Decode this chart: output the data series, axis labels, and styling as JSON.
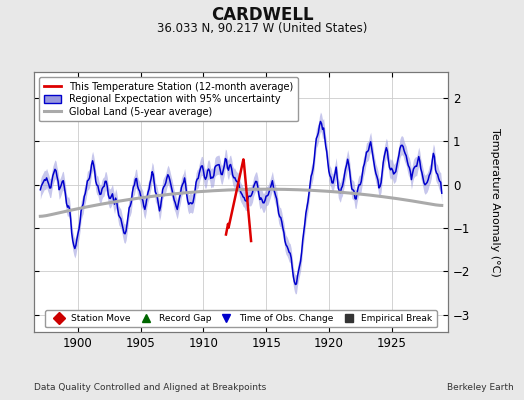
{
  "title": "CARDWELL",
  "subtitle": "36.033 N, 90.217 W (United States)",
  "ylabel": "Temperature Anomaly (°C)",
  "xlabel_left": "Data Quality Controlled and Aligned at Breakpoints",
  "xlabel_right": "Berkeley Earth",
  "xlim": [
    1896.5,
    1929.5
  ],
  "ylim": [
    -3.4,
    2.6
  ],
  "yticks": [
    -3,
    -2,
    -1,
    0,
    1,
    2
  ],
  "xticks": [
    1900,
    1905,
    1910,
    1915,
    1920,
    1925
  ],
  "bg_color": "#e8e8e8",
  "plot_bg_color": "#ffffff",
  "grid_color": "#cccccc",
  "blue_line_color": "#0000cc",
  "blue_fill_color": "#9999dd",
  "red_line_color": "#dd0000",
  "gray_line_color": "#aaaaaa",
  "legend_labels": [
    "This Temperature Station (12-month average)",
    "Regional Expectation with 95% uncertainty",
    "Global Land (5-year average)"
  ],
  "marker_legend": [
    {
      "marker": "D",
      "color": "#cc0000",
      "label": "Station Move"
    },
    {
      "marker": "^",
      "color": "#006600",
      "label": "Record Gap"
    },
    {
      "marker": "v",
      "color": "#0000cc",
      "label": "Time of Obs. Change"
    },
    {
      "marker": "s",
      "color": "#333333",
      "label": "Empirical Break"
    }
  ]
}
